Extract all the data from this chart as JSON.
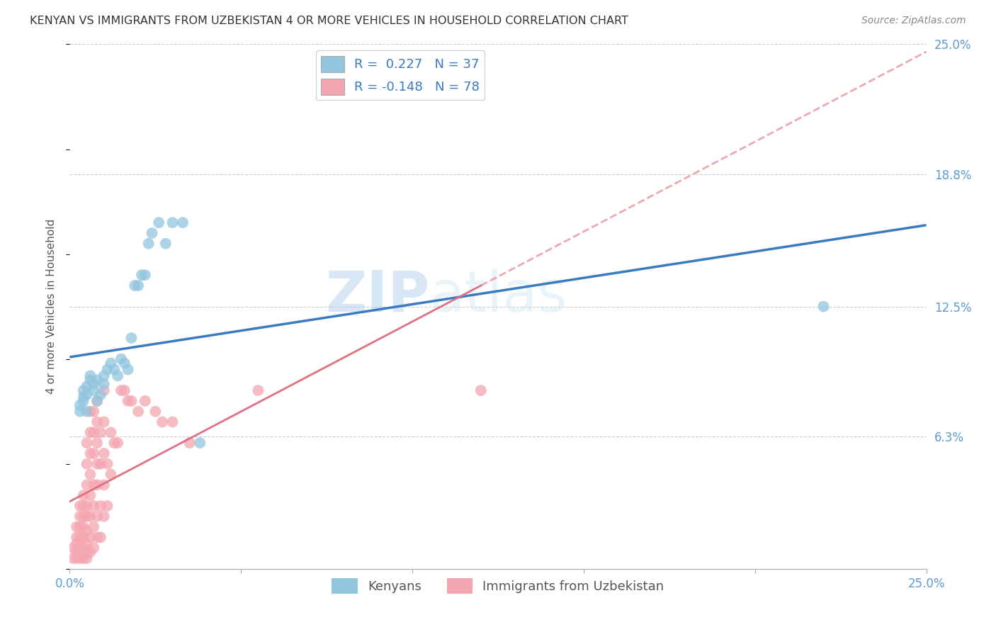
{
  "title": "KENYAN VS IMMIGRANTS FROM UZBEKISTAN 4 OR MORE VEHICLES IN HOUSEHOLD CORRELATION CHART",
  "source": "Source: ZipAtlas.com",
  "ylabel": "4 or more Vehicles in Household",
  "x_min": 0.0,
  "x_max": 0.25,
  "y_min": 0.0,
  "y_max": 0.25,
  "y_tick_labels_right": [
    "25.0%",
    "18.8%",
    "12.5%",
    "6.3%"
  ],
  "y_tick_values_right": [
    0.25,
    0.188,
    0.125,
    0.063
  ],
  "grid_color": "#cccccc",
  "background_color": "#ffffff",
  "kenyan_color": "#92c5de",
  "kenyan_line_color": "#3a7bbf",
  "uzbekistan_color": "#f4a6b0",
  "uzbekistan_line_color": "#e07080",
  "kenyan_R": 0.227,
  "kenyan_N": 37,
  "uzbekistan_R": -0.148,
  "uzbekistan_N": 78,
  "legend_label_kenyan": "Kenyans",
  "legend_label_uzbekistan": "Immigrants from Uzbekistan",
  "watermark_zip": "ZIP",
  "watermark_atlas": "atlas",
  "kenyan_x": [
    0.003,
    0.003,
    0.004,
    0.004,
    0.004,
    0.005,
    0.005,
    0.006,
    0.006,
    0.007,
    0.007,
    0.008,
    0.008,
    0.009,
    0.01,
    0.01,
    0.011,
    0.012,
    0.013,
    0.014,
    0.015,
    0.016,
    0.017,
    0.018,
    0.019,
    0.02,
    0.021,
    0.022,
    0.023,
    0.024,
    0.026,
    0.028,
    0.03,
    0.033,
    0.038,
    0.22,
    0.005
  ],
  "kenyan_y": [
    0.075,
    0.078,
    0.08,
    0.082,
    0.085,
    0.083,
    0.087,
    0.09,
    0.092,
    0.085,
    0.088,
    0.09,
    0.08,
    0.083,
    0.088,
    0.092,
    0.095,
    0.098,
    0.095,
    0.092,
    0.1,
    0.098,
    0.095,
    0.11,
    0.135,
    0.135,
    0.14,
    0.14,
    0.155,
    0.16,
    0.165,
    0.155,
    0.165,
    0.165,
    0.06,
    0.125,
    0.075
  ],
  "uzbekistan_x": [
    0.001,
    0.001,
    0.002,
    0.002,
    0.002,
    0.002,
    0.002,
    0.003,
    0.003,
    0.003,
    0.003,
    0.003,
    0.003,
    0.004,
    0.004,
    0.004,
    0.004,
    0.004,
    0.004,
    0.004,
    0.005,
    0.005,
    0.005,
    0.005,
    0.005,
    0.005,
    0.005,
    0.005,
    0.005,
    0.006,
    0.006,
    0.006,
    0.006,
    0.006,
    0.006,
    0.006,
    0.006,
    0.007,
    0.007,
    0.007,
    0.007,
    0.007,
    0.007,
    0.007,
    0.008,
    0.008,
    0.008,
    0.008,
    0.008,
    0.008,
    0.008,
    0.009,
    0.009,
    0.009,
    0.009,
    0.01,
    0.01,
    0.01,
    0.01,
    0.01,
    0.011,
    0.011,
    0.012,
    0.012,
    0.013,
    0.014,
    0.015,
    0.016,
    0.017,
    0.018,
    0.02,
    0.022,
    0.025,
    0.027,
    0.03,
    0.035,
    0.055,
    0.12
  ],
  "uzbekistan_y": [
    0.005,
    0.01,
    0.005,
    0.008,
    0.012,
    0.015,
    0.02,
    0.005,
    0.01,
    0.015,
    0.02,
    0.025,
    0.03,
    0.005,
    0.01,
    0.015,
    0.02,
    0.025,
    0.03,
    0.035,
    0.005,
    0.008,
    0.012,
    0.018,
    0.025,
    0.03,
    0.04,
    0.05,
    0.06,
    0.008,
    0.015,
    0.025,
    0.035,
    0.045,
    0.055,
    0.065,
    0.075,
    0.01,
    0.02,
    0.03,
    0.04,
    0.055,
    0.065,
    0.075,
    0.015,
    0.025,
    0.04,
    0.05,
    0.06,
    0.07,
    0.08,
    0.015,
    0.03,
    0.05,
    0.065,
    0.025,
    0.04,
    0.055,
    0.07,
    0.085,
    0.03,
    0.05,
    0.045,
    0.065,
    0.06,
    0.06,
    0.085,
    0.085,
    0.08,
    0.08,
    0.075,
    0.08,
    0.075,
    0.07,
    0.07,
    0.06,
    0.085,
    0.085
  ]
}
